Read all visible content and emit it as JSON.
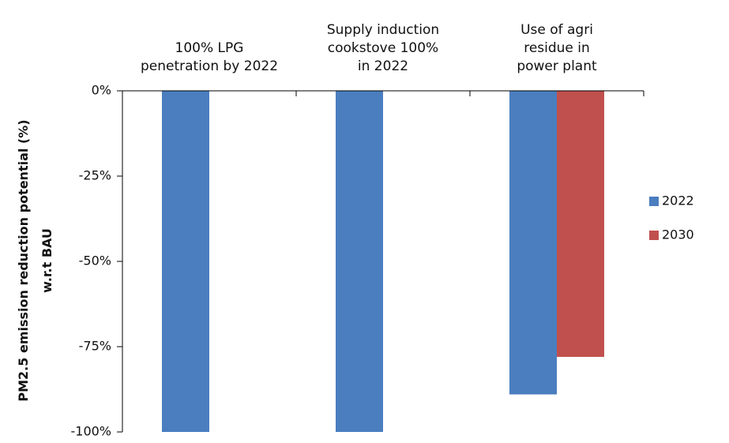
{
  "chart_data": {
    "type": "bar",
    "y_axis_label": "PM2.5 emission reduction potential (%)\nw.r.t BAU",
    "categories": [
      "100% LPG\npenetration by 2022",
      "Supply induction\ncookstove 100%\nin 2022",
      "Use of agri\nresidue in\npower plant"
    ],
    "series": [
      {
        "name": "2022",
        "color": "#4a7ebf",
        "values": [
          -100,
          -100,
          -89
        ]
      },
      {
        "name": "2030",
        "color": "#c0504d",
        "values": [
          null,
          null,
          -78
        ]
      }
    ],
    "ylim": [
      -100,
      0
    ],
    "yticks": [
      {
        "value": 0,
        "label": "0%"
      },
      {
        "value": -25,
        "label": "-25%"
      },
      {
        "value": -50,
        "label": "-50%"
      },
      {
        "value": -75,
        "label": "-75%"
      },
      {
        "value": -100,
        "label": "-100%"
      }
    ],
    "legend": "right"
  }
}
